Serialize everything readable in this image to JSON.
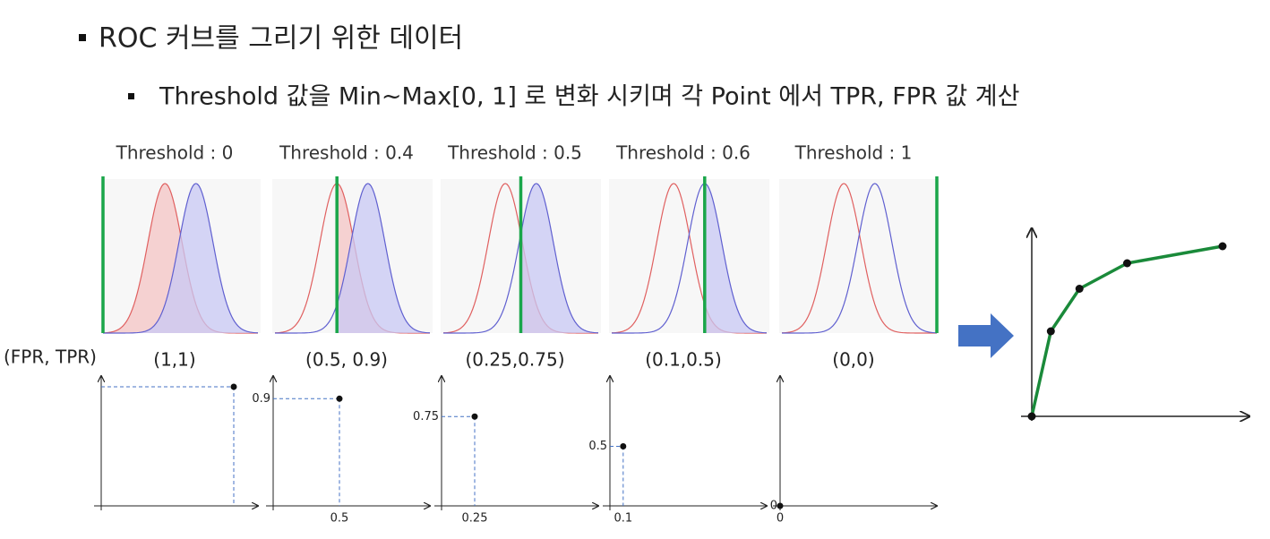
{
  "title": "ROC 커브를 그리기 위한 데이터",
  "bullet": "Threshold 값을 Min~Max[0, 1] 로 변화 시키며 각 Point 에서 TPR, FPR 값 계산",
  "pair_header": "(FPR, TPR)",
  "panels": [
    {
      "threshold": 0,
      "label": "Threshold : 0",
      "pair": "(1,1)",
      "fpr": 1,
      "tpr": 1
    },
    {
      "threshold": 0.4,
      "label": "Threshold : 0.4",
      "pair": "(0.5, 0.9)",
      "fpr": 0.5,
      "tpr": 0.9,
      "x_label": "0.5",
      "y_label": "0.9"
    },
    {
      "threshold": 0.5,
      "label": "Threshold : 0.5",
      "pair": "(0.25,0.75)",
      "fpr": 0.25,
      "tpr": 0.75,
      "x_label": "0.25",
      "y_label": "0.75"
    },
    {
      "threshold": 0.6,
      "label": "Threshold : 0.6",
      "pair": "(0.1,0.5)",
      "fpr": 0.1,
      "tpr": 0.5,
      "x_label": "0.1",
      "y_label": "0.5"
    },
    {
      "threshold": 1,
      "label": "Threshold : 1",
      "pair": "(0,0)",
      "fpr": 0,
      "tpr": 0,
      "x_label": "0",
      "y_label": "0"
    }
  ]
}
